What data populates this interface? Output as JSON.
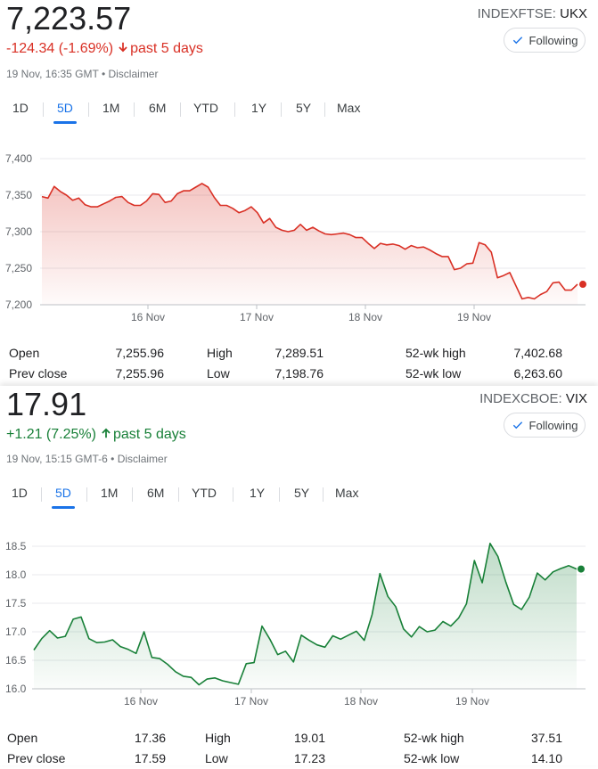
{
  "tabs": [
    "1D",
    "5D",
    "1M",
    "6M",
    "YTD",
    "1Y",
    "5Y",
    "Max"
  ],
  "active_tab": "5D",
  "follow_label": "Following",
  "ukx": {
    "price": "7,223.57",
    "change": "-124.34 (-1.69%)",
    "period": "past 5 days",
    "timestamp": "19 Nov, 16:35 GMT • Disclaimer",
    "exchange": "INDEXFTSE:",
    "symbol": "UKX",
    "color": "#d93025",
    "stats": {
      "open_label": "Open",
      "open": "7,255.96",
      "high_label": "High",
      "high": "7,289.51",
      "wk52_high_label": "52-wk high",
      "wk52_high": "7,402.68",
      "prev_close_label": "Prev close",
      "prev_close": "7,255.96",
      "low_label": "Low",
      "low": "7,198.76",
      "wk52_low_label": "52-wk low",
      "wk52_low": "6,263.60"
    }
  },
  "vix": {
    "price": "17.91",
    "change": "+1.21 (7.25%)",
    "period": "past 5 days",
    "timestamp": "19 Nov, 15:15 GMT-6 • Disclaimer",
    "exchange": "INDEXCBOE:",
    "symbol": "VIX",
    "color": "#188038",
    "stats": {
      "open_label": "Open",
      "open": "17.36",
      "high_label": "High",
      "high": "19.01",
      "wk52_high_label": "52-wk high",
      "wk52_high": "37.51",
      "prev_close_label": "Prev close",
      "prev_close": "17.59",
      "low_label": "Low",
      "low": "17.23",
      "wk52_low_label": "52-wk low",
      "wk52_low": "14.10"
    }
  },
  "chart_data": [
    {
      "type": "area",
      "series": [
        {
          "values": [
            7348,
            7346,
            7362,
            7355,
            7350,
            7343,
            7346,
            7337,
            7334,
            7334,
            7338,
            7342,
            7347,
            7348,
            7340,
            7336,
            7336,
            7342,
            7352,
            7351,
            7340,
            7342,
            7352,
            7356,
            7356,
            7361,
            7366,
            7361,
            7347,
            7336,
            7336,
            7332,
            7326,
            7329,
            7334,
            7326,
            7312,
            7318,
            7306,
            7302,
            7300,
            7302,
            7310,
            7302,
            7306,
            7301,
            7297,
            7296,
            7297,
            7298,
            7296,
            7292,
            7292,
            7284,
            7277,
            7284,
            7282,
            7283,
            7281,
            7276,
            7281,
            7278,
            7279,
            7275,
            7270,
            7266,
            7266,
            7248,
            7250,
            7256,
            7257,
            7285,
            7282,
            7272,
            7237,
            7240,
            7244,
            7226,
            7208,
            7210,
            7208,
            7214,
            7218,
            7230,
            7231,
            7220,
            7220,
            7228
          ]
        }
      ],
      "x_tick_labels": [
        "16 Nov",
        "17 Nov",
        "18 Nov",
        "19 Nov"
      ],
      "y_ticks": [
        "7,400",
        "7,350",
        "7,300",
        "7,250",
        "7,200"
      ],
      "ylim": [
        7200,
        7400
      ],
      "grid": true
    },
    {
      "type": "area",
      "series": [
        {
          "values": [
            16.68,
            16.88,
            17.02,
            16.89,
            16.92,
            17.22,
            17.26,
            16.88,
            16.81,
            16.82,
            16.86,
            16.74,
            16.69,
            16.62,
            17.0,
            16.55,
            16.53,
            16.43,
            16.3,
            16.22,
            16.2,
            16.07,
            16.17,
            16.19,
            16.14,
            16.11,
            16.08,
            16.44,
            16.46,
            17.1,
            16.87,
            16.6,
            16.66,
            16.47,
            16.94,
            16.85,
            16.77,
            16.73,
            16.93,
            16.87,
            16.94,
            17.01,
            16.85,
            17.3,
            18.02,
            17.62,
            17.44,
            17.05,
            16.91,
            17.09,
            17.0,
            17.03,
            17.18,
            17.1,
            17.24,
            17.49,
            18.25,
            17.86,
            18.55,
            18.32,
            17.87,
            17.48,
            17.39,
            17.61,
            18.03,
            17.91,
            18.05,
            18.11,
            18.16,
            18.1
          ]
        }
      ],
      "x_tick_labels": [
        "16 Nov",
        "17 Nov",
        "18 Nov",
        "19 Nov"
      ],
      "y_ticks": [
        "18.5",
        "18.0",
        "17.5",
        "17.0",
        "16.5",
        "16.0"
      ],
      "ylim": [
        16.0,
        18.5
      ],
      "grid": true
    }
  ]
}
